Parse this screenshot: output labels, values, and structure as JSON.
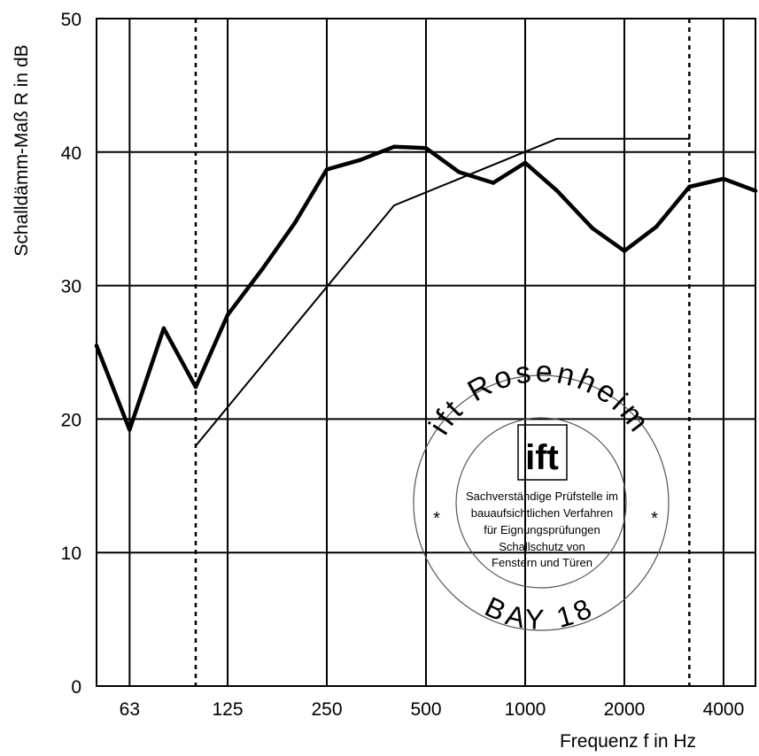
{
  "chart_data": {
    "type": "line",
    "title": "",
    "xlabel": "Frequenz f in Hz",
    "ylabel": "Schalldämm-Maß R in dB",
    "x_scale": "log",
    "xlim": [
      50,
      5000
    ],
    "ylim": [
      0,
      50
    ],
    "y_ticks": [
      0,
      10,
      20,
      30,
      40,
      50
    ],
    "x_tick_labels": [
      {
        "value": 63,
        "label": "63"
      },
      {
        "value": 125,
        "label": "125"
      },
      {
        "value": 250,
        "label": "250"
      },
      {
        "value": 500,
        "label": "500"
      },
      {
        "value": 1000,
        "label": "1000"
      },
      {
        "value": 2000,
        "label": "2000"
      },
      {
        "value": 4000,
        "label": "4000"
      }
    ],
    "x_gridlines": [
      63,
      125,
      250,
      500,
      1000,
      2000,
      4000
    ],
    "dotted_lines": [
      100,
      3150
    ],
    "grid": true,
    "series": [
      {
        "name": "",
        "style": "thick",
        "x": [
          50,
          63,
          80,
          100,
          125,
          160,
          200,
          250,
          315,
          400,
          500,
          630,
          800,
          1000,
          1250,
          1600,
          2000,
          2500,
          3150,
          4000,
          5000
        ],
        "y": [
          25.5,
          19.2,
          26.8,
          22.4,
          27.8,
          31.3,
          34.7,
          38.7,
          39.4,
          40.4,
          40.3,
          38.5,
          37.7,
          39.2,
          37.1,
          34.3,
          32.6,
          34.4,
          37.4,
          38.0,
          37.1
        ]
      },
      {
        "name": "",
        "style": "thin",
        "x": [
          100,
          400,
          1250,
          3150
        ],
        "y": [
          18,
          36,
          41,
          41
        ]
      }
    ]
  },
  "stamp": {
    "ring_top": "ift Rosenheim",
    "logo": "ift",
    "lines": [
      "Sachverständige Prüfstelle im",
      "bauaufsichtlichen Verfahren",
      "für Eignungsprüfungen",
      "Schallschutz von",
      "Fenstern und Türen"
    ],
    "ring_bottom": "BAY 18"
  }
}
